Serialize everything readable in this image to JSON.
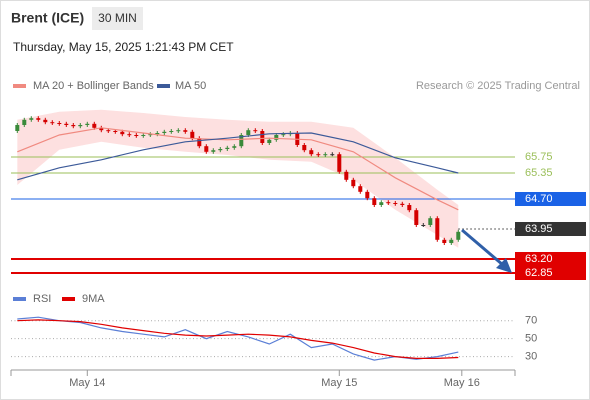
{
  "header": {
    "title": "Brent (ICE)",
    "timeframe": "30 MIN",
    "datetime": "Thursday, May 15, 2025 1:21:43 PM CET",
    "source": "Research © 2025 Trading Central"
  },
  "chart_data": [
    {
      "type": "candlestick",
      "up_color": "#3a8a3a",
      "down_color": "#d40000",
      "xlim": [
        -0.9,
        71.1
      ],
      "ylim": [
        62.55,
        67.8
      ],
      "x": [
        0,
        1,
        2,
        3,
        4,
        5,
        6,
        7,
        8,
        9,
        10,
        11,
        12,
        13,
        14,
        15,
        16,
        17,
        18,
        19,
        20,
        21,
        22,
        23,
        24,
        25,
        26,
        27,
        28,
        29,
        30,
        31,
        32,
        33,
        34,
        35,
        36,
        37,
        38,
        39,
        40,
        41,
        42,
        43,
        44,
        45,
        46,
        47,
        48,
        49,
        50,
        51,
        52,
        53,
        54,
        55,
        56,
        57,
        58,
        59,
        60,
        61,
        62,
        63
      ],
      "open": [
        66.4,
        66.55,
        66.68,
        66.72,
        66.68,
        66.62,
        66.6,
        66.58,
        66.55,
        66.52,
        66.55,
        66.58,
        66.48,
        66.42,
        66.4,
        66.38,
        66.32,
        66.3,
        66.28,
        66.3,
        66.32,
        66.35,
        66.38,
        66.4,
        66.42,
        66.38,
        66.22,
        66.02,
        65.88,
        65.92,
        65.95,
        65.98,
        66.02,
        66.3,
        66.42,
        66.4,
        66.1,
        66.18,
        66.3,
        66.32,
        66.35,
        66.05,
        65.92,
        65.82,
        65.8,
        65.82,
        65.82,
        65.38,
        65.18,
        65.02,
        64.88,
        64.72,
        64.55,
        64.62,
        64.6,
        64.58,
        64.55,
        64.42,
        64.05,
        64.05,
        64.22,
        63.68,
        63.6,
        63.68
      ],
      "high": [
        66.6,
        66.73,
        66.77,
        66.77,
        66.73,
        66.67,
        66.65,
        66.63,
        66.6,
        66.6,
        66.63,
        66.63,
        66.53,
        66.47,
        66.45,
        66.43,
        66.37,
        66.35,
        66.35,
        66.37,
        66.4,
        66.43,
        66.45,
        66.47,
        66.47,
        66.43,
        66.27,
        66.07,
        65.97,
        66.0,
        66.03,
        66.07,
        66.35,
        66.47,
        66.47,
        66.45,
        66.23,
        66.35,
        66.37,
        66.4,
        66.4,
        66.1,
        65.97,
        65.87,
        65.87,
        65.87,
        65.87,
        65.43,
        65.23,
        65.07,
        64.93,
        64.77,
        64.67,
        64.67,
        64.65,
        64.63,
        64.6,
        64.47,
        64.1,
        64.27,
        64.27,
        63.73,
        63.73,
        63.93
      ],
      "low": [
        66.35,
        66.5,
        66.63,
        66.63,
        66.57,
        66.55,
        66.53,
        66.5,
        66.47,
        66.47,
        66.5,
        66.43,
        66.37,
        66.35,
        66.33,
        66.27,
        66.25,
        66.23,
        66.23,
        66.25,
        66.27,
        66.3,
        66.33,
        66.35,
        66.33,
        66.17,
        65.97,
        65.83,
        65.83,
        65.87,
        65.9,
        65.93,
        65.97,
        66.25,
        66.35,
        66.05,
        66.05,
        66.13,
        66.25,
        66.27,
        66.0,
        65.87,
        65.77,
        65.75,
        65.75,
        65.77,
        65.33,
        65.13,
        64.97,
        64.83,
        64.67,
        64.5,
        64.5,
        64.55,
        64.53,
        64.5,
        64.37,
        64.0,
        64.0,
        64.0,
        63.63,
        63.55,
        63.55,
        63.63
      ],
      "close": [
        66.55,
        66.68,
        66.72,
        66.68,
        66.62,
        66.6,
        66.58,
        66.55,
        66.52,
        66.55,
        66.58,
        66.48,
        66.42,
        66.4,
        66.38,
        66.32,
        66.3,
        66.28,
        66.3,
        66.32,
        66.35,
        66.38,
        66.4,
        66.42,
        66.38,
        66.22,
        66.02,
        65.88,
        65.92,
        65.95,
        65.98,
        66.02,
        66.3,
        66.42,
        66.4,
        66.1,
        66.18,
        66.3,
        66.32,
        66.35,
        66.05,
        65.92,
        65.82,
        65.8,
        65.82,
        65.82,
        65.38,
        65.18,
        65.02,
        64.88,
        64.72,
        64.55,
        64.62,
        64.6,
        64.58,
        64.55,
        64.42,
        64.05,
        64.05,
        64.22,
        63.68,
        63.6,
        63.68,
        63.88
      ],
      "band": {
        "color": "#fde0e0",
        "x": [
          0,
          6,
          12,
          18,
          24,
          30,
          36,
          42,
          48,
          54,
          60,
          63
        ],
        "upper": [
          66.68,
          66.88,
          66.93,
          66.85,
          66.75,
          66.68,
          66.63,
          66.63,
          66.48,
          65.73,
          64.93,
          64.55
        ],
        "lower": [
          65.05,
          65.93,
          66.13,
          65.98,
          65.88,
          65.8,
          65.68,
          65.63,
          65.18,
          64.43,
          63.8,
          63.48
        ]
      },
      "series": [
        {
          "name": "MA 20 + Bollinger Bands",
          "color": "#f08a80",
          "x": [
            0,
            6,
            12,
            18,
            24,
            30,
            36,
            42,
            48,
            54,
            60,
            63
          ],
          "values": [
            65.88,
            66.3,
            66.48,
            66.35,
            66.22,
            66.18,
            66.22,
            66.18,
            65.88,
            65.23,
            64.68,
            64.43
          ]
        },
        {
          "name": "MA 50",
          "color": "#3c5a99",
          "x": [
            0,
            6,
            12,
            18,
            24,
            30,
            36,
            42,
            48,
            54,
            60,
            63
          ],
          "values": [
            65.18,
            65.48,
            65.68,
            65.93,
            66.13,
            66.22,
            66.33,
            66.35,
            66.13,
            65.73,
            65.48,
            65.35
          ]
        }
      ],
      "levels": [
        {
          "value": 65.75,
          "color": "#9bbf5a",
          "boxed": false
        },
        {
          "value": 65.35,
          "color": "#9bbf5a",
          "boxed": false
        },
        {
          "value": {
            "value": 64.7,
            "label": "64.70"
          },
          "color": "#1a62e6",
          "boxed": true
        },
        {
          "value": 63.95,
          "color": "#333333",
          "boxed": true,
          "dotted": true
        },
        {
          "value": {
            "value": 63.2,
            "label": "63.20"
          },
          "color": "#e00000",
          "boxed": true
        },
        {
          "value": 62.85,
          "color": "#e00000",
          "boxed": true
        }
      ]
    },
    {
      "type": "line",
      "xlim": [
        -0.9,
        71.1
      ],
      "ylim": [
        15,
        82
      ],
      "yticks": [
        30,
        50,
        70
      ],
      "xticks": [
        {
          "value": 10,
          "label": "May 14"
        },
        {
          "value": 46,
          "label": "May 15"
        },
        {
          "value": 63.5,
          "label": "May 16"
        }
      ],
      "series": [
        {
          "name": "RSI",
          "color": "#5b7fd6",
          "x": [
            0,
            3,
            6,
            9,
            12,
            15,
            18,
            21,
            24,
            27,
            30,
            33,
            36,
            39,
            42,
            45,
            48,
            51,
            54,
            57,
            60,
            63
          ],
          "values": [
            72,
            74,
            70,
            68,
            62,
            58,
            55,
            52,
            60,
            50,
            58,
            52,
            44,
            55,
            40,
            44,
            33,
            26,
            30,
            27,
            30,
            35
          ]
        },
        {
          "name": "9MA",
          "color": "#e00000",
          "x": [
            0,
            3,
            6,
            9,
            12,
            15,
            18,
            21,
            24,
            27,
            30,
            33,
            36,
            39,
            42,
            45,
            48,
            51,
            54,
            57,
            60,
            63
          ],
          "values": [
            70,
            71,
            70,
            69,
            66,
            62,
            59,
            56,
            54,
            53,
            54,
            55,
            54,
            52,
            48,
            45,
            40,
            34,
            30,
            28,
            28,
            29
          ]
        }
      ]
    }
  ]
}
